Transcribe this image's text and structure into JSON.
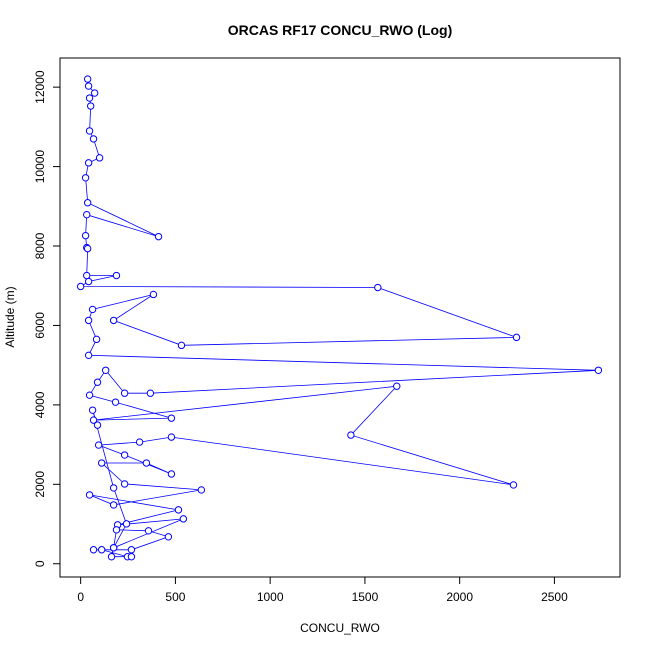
{
  "chart_data": {
    "type": "line",
    "title": "ORCAS RF17 CONCU_RWO (Log)",
    "x_label": "CONCU_RWO",
    "y_label": "Altitude (m)",
    "x": [
      37,
      42,
      74,
      47,
      53,
      47,
      68,
      100,
      42,
      26,
      37,
      411,
      32,
      26,
      32,
      37,
      32,
      189,
      42,
      0,
      1568,
      2300,
      532,
      174,
      384,
      63,
      42,
      84,
      42,
      2732,
      368,
      232,
      132,
      89,
      47,
      184,
      479,
      68,
      1668,
      1426,
      2284,
      479,
      311,
      95,
      232,
      479,
      347,
      111,
      232,
      637,
      174,
      47,
      516,
      195,
      542,
      174,
      189,
      358,
      463,
      268,
      68,
      111,
      247,
      268,
      163,
      174,
      242,
      174,
      63,
      89
    ],
    "series": [
      {
        "name": "CONCU_RWO",
        "color": "#0000ff",
        "values": [
          12203,
          12028,
          11852,
          11726,
          11525,
          10898,
          10697,
          10220,
          10094,
          9718,
          9090,
          8236,
          8789,
          8261,
          7960,
          7935,
          7257,
          7257,
          7106,
          6981,
          6955,
          5700,
          5499,
          6127,
          6780,
          6403,
          6127,
          5650,
          5248,
          4871,
          4294,
          4294,
          4871,
          4570,
          4244,
          4068,
          3666,
          3616,
          4470,
          3239,
          1984,
          3189,
          3063,
          2988,
          2737,
          2260,
          2536,
          2536,
          2009,
          1858,
          1481,
          1733,
          1356,
          979,
          1130,
          402,
          854,
          829,
          678,
          352,
          352,
          352,
          176,
          176,
          176,
          402,
          1004,
          1909,
          3867,
          3490
        ]
      }
    ],
    "xlim": [
      -109,
      2846
    ],
    "ylim": [
      -334,
      12734
    ],
    "xticks": [
      0,
      500,
      1000,
      1500,
      2000,
      2500
    ],
    "yticks": [
      0,
      2000,
      4000,
      6000,
      8000,
      10000,
      12000
    ]
  }
}
